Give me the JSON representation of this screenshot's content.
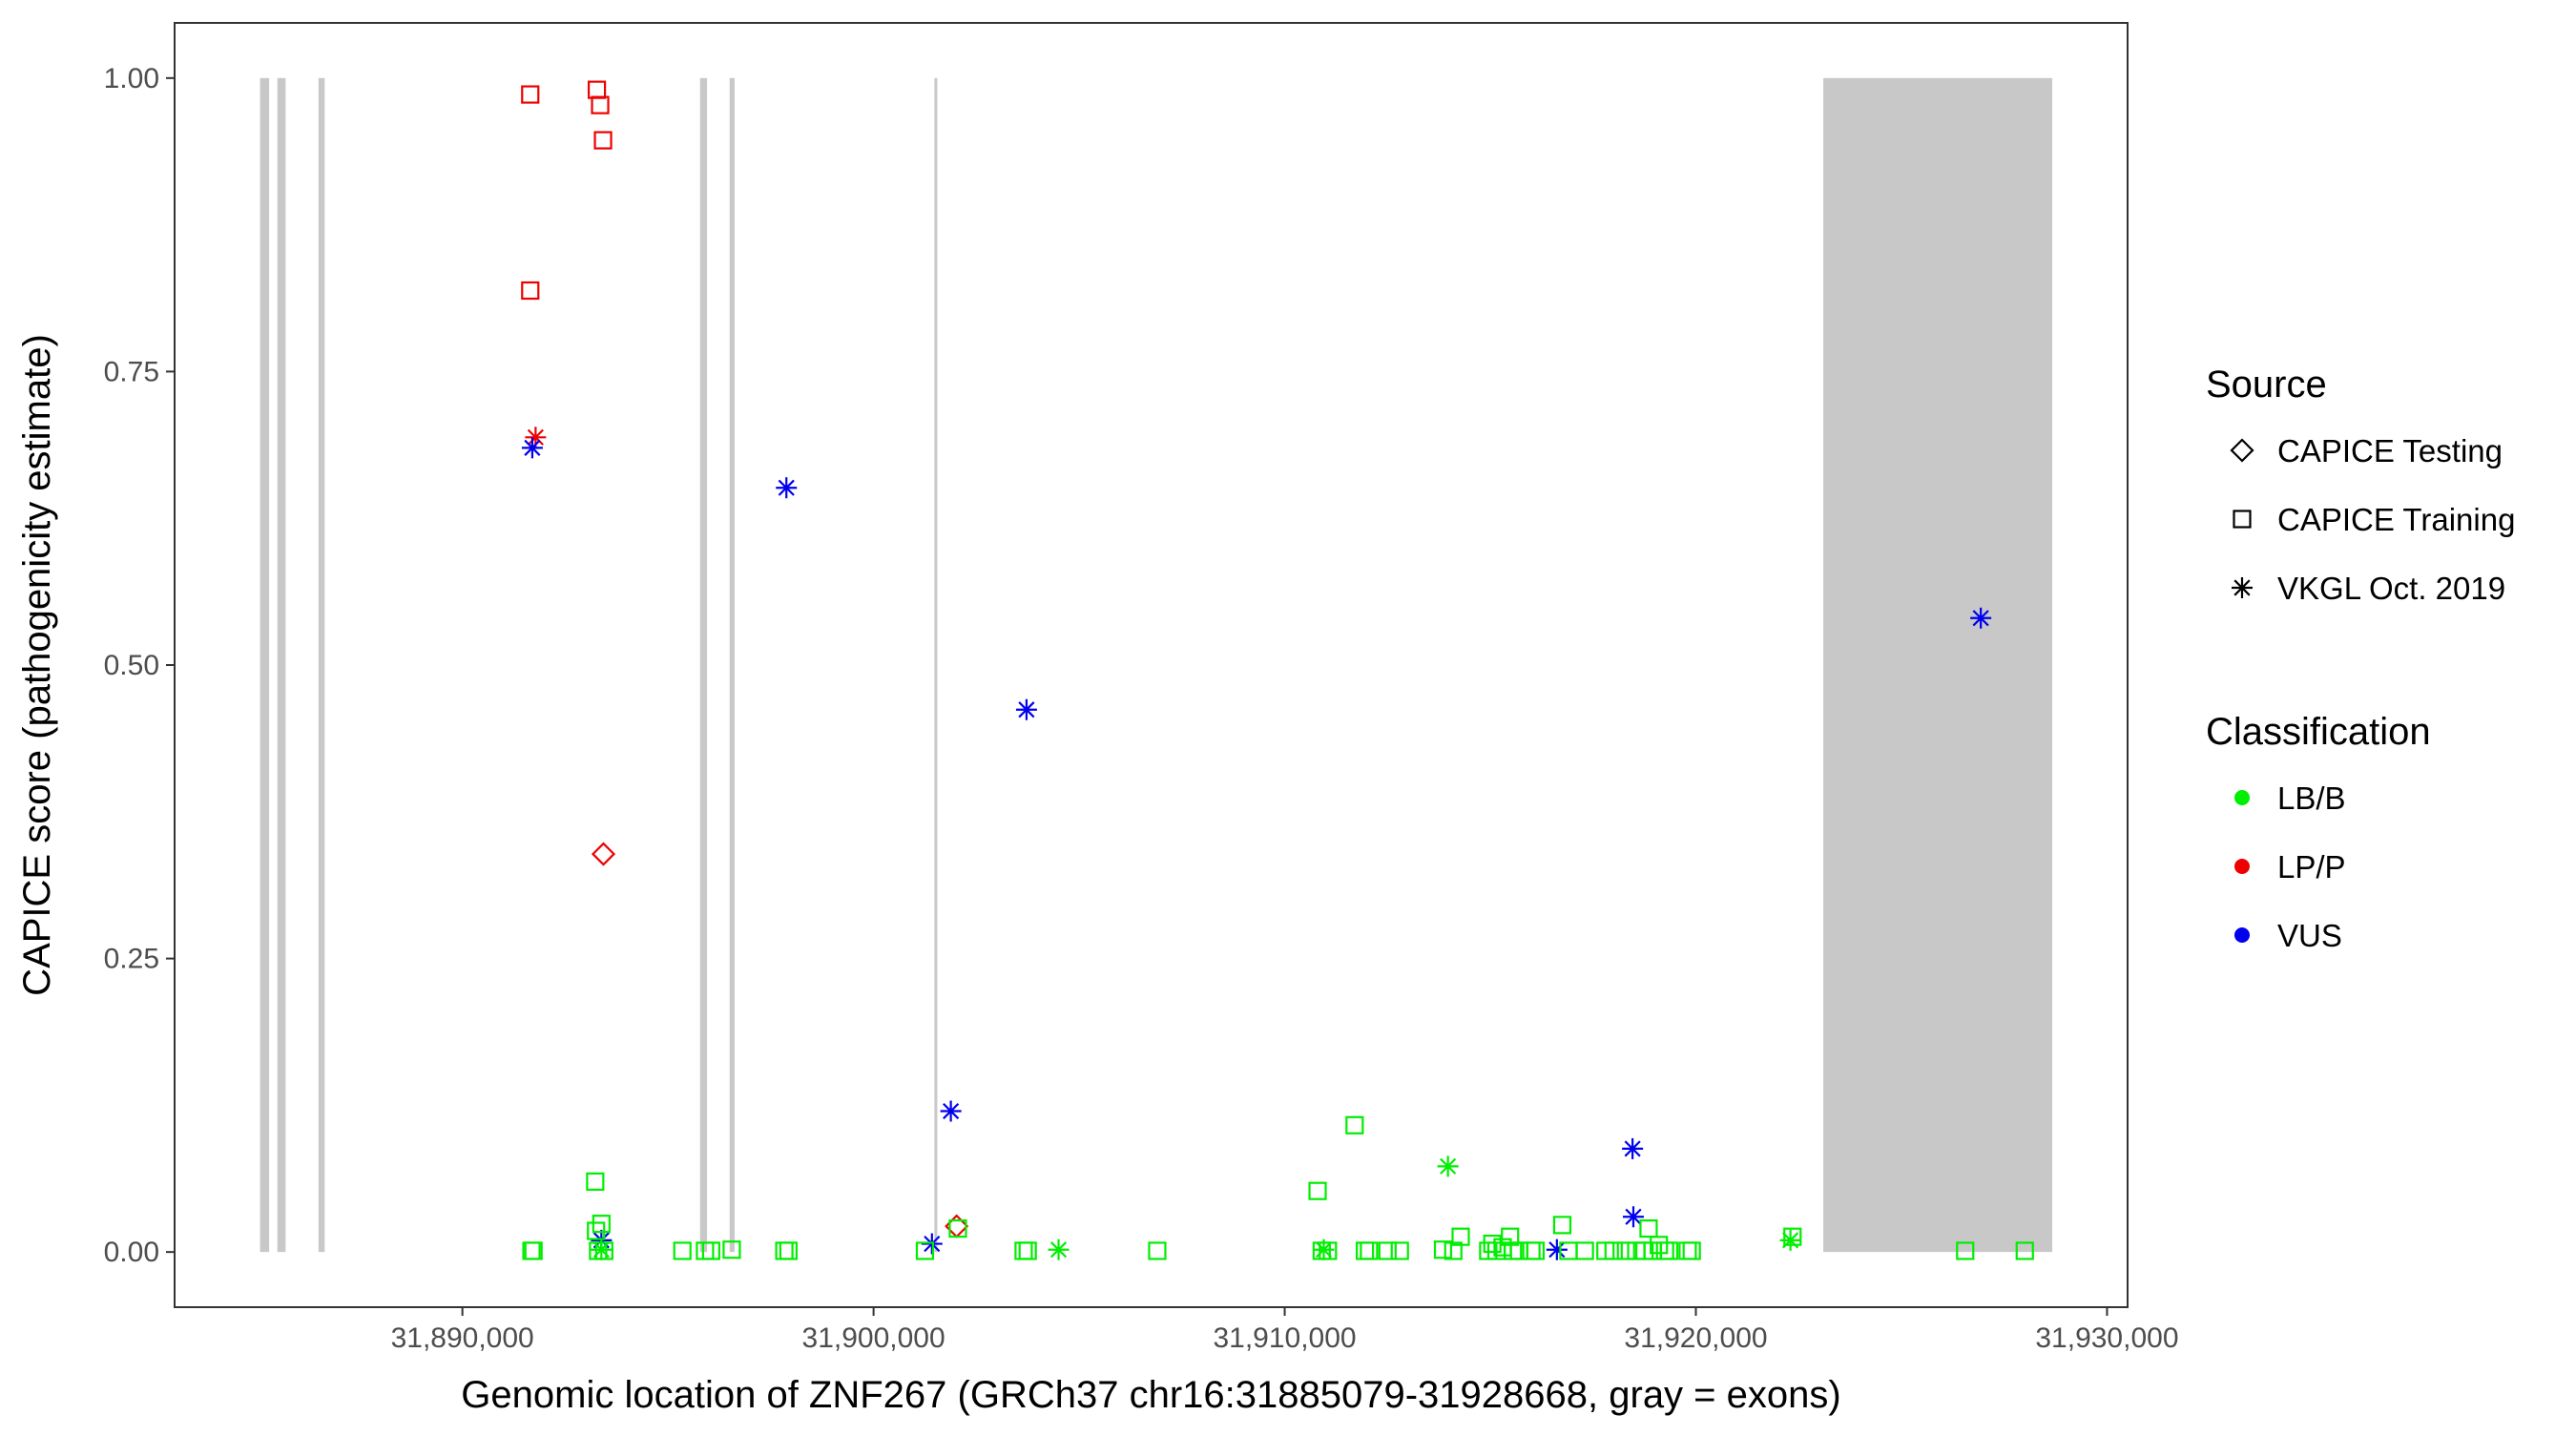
{
  "chart_data": {
    "type": "scatter",
    "title": "",
    "xlabel": "Genomic location of ZNF267 (GRCh37 chr16:31885079-31928668, gray = exons)",
    "ylabel": "CAPICE score (pathogenicity estimate)",
    "xlim": [
      31883000,
      31930500
    ],
    "ylim": [
      -0.047,
      1.047
    ],
    "x_ticks": [
      {
        "value": 31890000,
        "label": "31,890,000"
      },
      {
        "value": 31900000,
        "label": "31,900,000"
      },
      {
        "value": 31910000,
        "label": "31,910,000"
      },
      {
        "value": 31920000,
        "label": "31,920,000"
      },
      {
        "value": 31930000,
        "label": "31,930,000"
      }
    ],
    "y_ticks": [
      {
        "value": 0.0,
        "label": "0.00"
      },
      {
        "value": 0.25,
        "label": "0.25"
      },
      {
        "value": 0.5,
        "label": "0.50"
      },
      {
        "value": 0.75,
        "label": "0.75"
      },
      {
        "value": 1.0,
        "label": "1.00"
      }
    ],
    "grid": false,
    "exons": [
      {
        "start": 31885079,
        "end": 31885300
      },
      {
        "start": 31885500,
        "end": 31885700
      },
      {
        "start": 31886500,
        "end": 31886650
      },
      {
        "start": 31895780,
        "end": 31895950
      },
      {
        "start": 31896500,
        "end": 31896620
      },
      {
        "start": 31901480,
        "end": 31901550
      },
      {
        "start": 31923100,
        "end": 31928668
      }
    ],
    "exon_color": "#c8c8c8",
    "legend": {
      "position": "right",
      "source": {
        "title": "Source",
        "items": [
          {
            "label": "CAPICE Testing",
            "shape": "diamond"
          },
          {
            "label": "CAPICE Training",
            "shape": "square"
          },
          {
            "label": "VKGL Oct. 2019",
            "shape": "asterisk"
          }
        ]
      },
      "classification": {
        "title": "Classification",
        "items": [
          {
            "label": "LB/B",
            "color": "#00ee00"
          },
          {
            "label": "LP/P",
            "color": "#ee0000"
          },
          {
            "label": "VUS",
            "color": "#0000ee"
          }
        ]
      }
    },
    "series": [
      {
        "source": "CAPICE Training",
        "classification": "LP/P",
        "points": [
          [
            31891650,
            0.986
          ],
          [
            31893270,
            0.99
          ],
          [
            31893350,
            0.977
          ],
          [
            31893420,
            0.947
          ],
          [
            31891650,
            0.819
          ]
        ]
      },
      {
        "source": "VKGL Oct. 2019",
        "classification": "LP/P",
        "points": [
          [
            31891780,
            0.694
          ]
        ]
      },
      {
        "source": "CAPICE Testing",
        "classification": "LP/P",
        "points": [
          [
            31893430,
            0.339
          ],
          [
            31902020,
            0.022
          ]
        ]
      },
      {
        "source": "VKGL Oct. 2019",
        "classification": "VUS",
        "points": [
          [
            31891700,
            0.685
          ],
          [
            31897880,
            0.651
          ],
          [
            31903720,
            0.462
          ],
          [
            31926930,
            0.54
          ],
          [
            31901880,
            0.12
          ],
          [
            31918460,
            0.088
          ],
          [
            31918480,
            0.03
          ],
          [
            31901420,
            0.007
          ],
          [
            31893380,
            0.01
          ],
          [
            31916620,
            0.002
          ]
        ]
      },
      {
        "source": "VKGL Oct. 2019",
        "classification": "LB/B",
        "points": [
          [
            31913970,
            0.073
          ],
          [
            31904500,
            0.002
          ],
          [
            31910950,
            0.002
          ],
          [
            31922300,
            0.01
          ],
          [
            31893380,
            0.002
          ]
        ]
      },
      {
        "source": "CAPICE Training",
        "classification": "LB/B",
        "points": [
          [
            31893230,
            0.06
          ],
          [
            31893380,
            0.024
          ],
          [
            31893250,
            0.018
          ],
          [
            31891680,
            0.001
          ],
          [
            31891730,
            0.001
          ],
          [
            31893300,
            0.001
          ],
          [
            31893450,
            0.001
          ],
          [
            31895350,
            0.001
          ],
          [
            31895900,
            0.001
          ],
          [
            31896050,
            0.001
          ],
          [
            31896550,
            0.002
          ],
          [
            31897830,
            0.001
          ],
          [
            31897930,
            0.001
          ],
          [
            31901250,
            0.001
          ],
          [
            31902050,
            0.02
          ],
          [
            31903650,
            0.001
          ],
          [
            31903750,
            0.001
          ],
          [
            31906900,
            0.001
          ],
          [
            31910800,
            0.052
          ],
          [
            31911700,
            0.108
          ],
          [
            31910900,
            0.001
          ],
          [
            31911050,
            0.001
          ],
          [
            31911950,
            0.001
          ],
          [
            31912050,
            0.001
          ],
          [
            31912500,
            0.001
          ],
          [
            31912800,
            0.001
          ],
          [
            31913850,
            0.002
          ],
          [
            31914100,
            0.001
          ],
          [
            31914280,
            0.013
          ],
          [
            31914950,
            0.001
          ],
          [
            31915050,
            0.007
          ],
          [
            31915150,
            0.001
          ],
          [
            31915300,
            0.004
          ],
          [
            31915480,
            0.013
          ],
          [
            31915550,
            0.001
          ],
          [
            31915700,
            0.001
          ],
          [
            31916000,
            0.001
          ],
          [
            31916100,
            0.001
          ],
          [
            31916750,
            0.023
          ],
          [
            31916900,
            0.001
          ],
          [
            31917300,
            0.001
          ],
          [
            31917800,
            0.001
          ],
          [
            31918000,
            0.001
          ],
          [
            31918300,
            0.001
          ],
          [
            31918550,
            0.001
          ],
          [
            31918750,
            0.001
          ],
          [
            31918850,
            0.02
          ],
          [
            31918950,
            0.001
          ],
          [
            31919100,
            0.006
          ],
          [
            31919250,
            0.001
          ],
          [
            31919350,
            0.001
          ],
          [
            31919800,
            0.001
          ],
          [
            31919900,
            0.001
          ],
          [
            31922350,
            0.013
          ],
          [
            31926550,
            0.001
          ],
          [
            31928000,
            0.001
          ]
        ]
      }
    ]
  }
}
